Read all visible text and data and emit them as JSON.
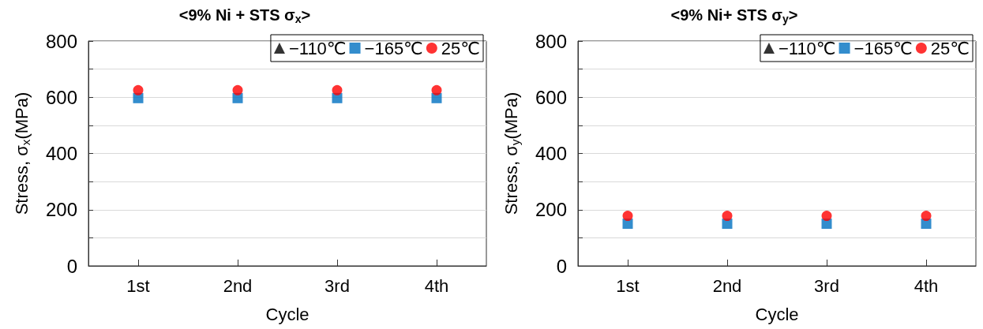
{
  "chart_data": [
    {
      "type": "scatter",
      "title": "<9% Ni + STS σ$_{x}$>",
      "xlabel": "Cycle",
      "ylabel": "Stress, σ$_{x}$(MPa)",
      "categories": [
        "1st",
        "2nd",
        "3rd",
        "4th"
      ],
      "ylim": [
        0,
        800
      ],
      "yticks": [
        0,
        {
          "value": 100,
          "label": null
        },
        200,
        {
          "value": 300,
          "label": null
        },
        400,
        {
          "value": 500,
          "label": null
        },
        600,
        {
          "value": 700,
          "label": null
        },
        800
      ],
      "grid": "y",
      "legend": "top right",
      "series": [
        {
          "name": "−110℃",
          "color": "#000000",
          "marker": "triangle",
          "values": [
            null,
            null,
            null,
            null
          ]
        },
        {
          "name": "−165℃",
          "color": "#0070c0",
          "marker": "square",
          "values": [
            597,
            597,
            597,
            597
          ]
        },
        {
          "name": "25℃",
          "color": "#ff0000",
          "marker": "circle",
          "values": [
            625,
            625,
            625,
            625
          ]
        }
      ]
    },
    {
      "type": "scatter",
      "title": "<9% Ni+ STS σ$_{y}$>",
      "xlabel": "Cycle",
      "ylabel": "Stress, σ$_{y}$(MPa)",
      "categories": [
        "1st",
        "2nd",
        "3rd",
        "4th"
      ],
      "ylim": [
        0,
        800
      ],
      "yticks": [
        0,
        {
          "value": 100,
          "label": null
        },
        200,
        {
          "value": 300,
          "label": null
        },
        400,
        {
          "value": 500,
          "label": null
        },
        600,
        {
          "value": 700,
          "label": null
        },
        800
      ],
      "grid": "y",
      "legend": "top right",
      "series": [
        {
          "name": "−110℃",
          "color": "#000000",
          "marker": "triangle",
          "values": [
            null,
            null,
            null,
            null
          ]
        },
        {
          "name": "−165℃",
          "color": "#0070c0",
          "marker": "square",
          "values": [
            150,
            150,
            150,
            150
          ]
        },
        {
          "name": "25℃",
          "color": "#ff0000",
          "marker": "circle",
          "values": [
            178,
            178,
            178,
            178
          ]
        }
      ]
    }
  ]
}
